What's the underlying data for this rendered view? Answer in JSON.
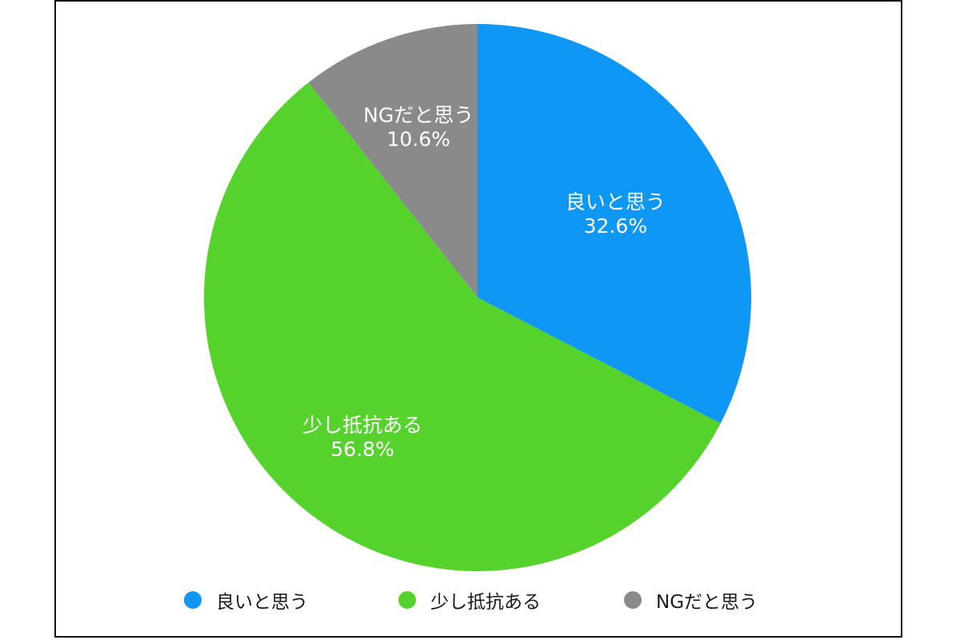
{
  "chart_data": {
    "type": "pie",
    "categories": [
      "良いと思う",
      "少し抵抗ある",
      "NGだと思う"
    ],
    "values": [
      32.6,
      56.8,
      10.6
    ],
    "value_labels": [
      "32.6%",
      "56.8%",
      "10.6%"
    ],
    "colors": [
      "#0e97f5",
      "#55d22b",
      "#8a8a8a"
    ],
    "start": "12 o'clock",
    "direction": "clockwise",
    "legend_position": "bottom"
  }
}
